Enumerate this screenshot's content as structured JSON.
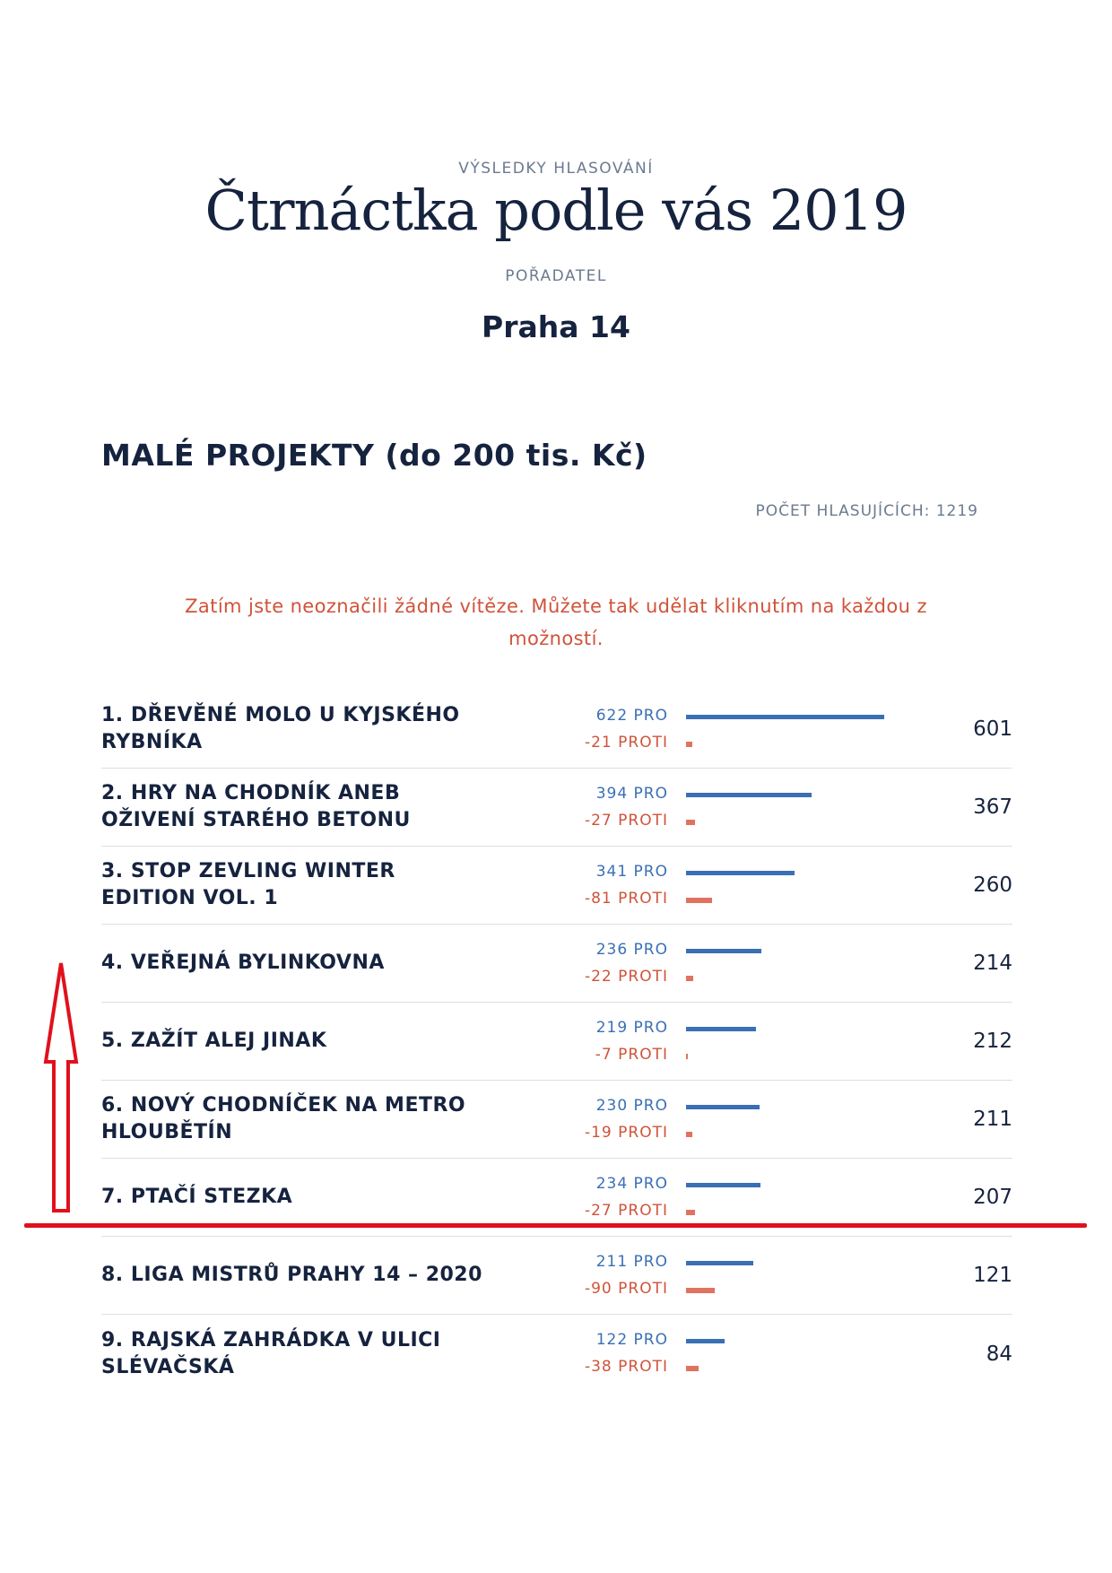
{
  "header": {
    "kicker": "VÝSLEDKY HLASOVÁNÍ",
    "title": "Čtrnáctka podle vás 2019",
    "organizer_label": "POŘADATEL",
    "organizer": "Praha 14"
  },
  "section": {
    "title": "MALÉ PROJEKTY (do 200 tis. Kč)",
    "voters": "POČET HLASUJÍCÍCH: 1219",
    "notice": "Zatím jste neoznačili žádné vítěze. Můžete tak udělat kliknutím na každou z možností."
  },
  "colors": {
    "pro": "#3a6fb5",
    "contra": "#e07360",
    "accent_red": "#e0111c",
    "title": "#16233f"
  },
  "results": [
    {
      "name": "1. DŘEVĚNÉ MOLO U KYJSKÉHO RYBNÍKA",
      "pro": 622,
      "pro_label": "622 PRO",
      "contra": 21,
      "contra_label": "-21 PROTI",
      "total": "601"
    },
    {
      "name": "2. HRY NA CHODNÍK ANEB OŽIVENÍ STARÉHO BETONU",
      "pro": 394,
      "pro_label": "394 PRO",
      "contra": 27,
      "contra_label": "-27 PROTI",
      "total": "367"
    },
    {
      "name": "3. STOP ZEVLING WINTER EDITION VOL. 1",
      "pro": 341,
      "pro_label": "341 PRO",
      "contra": 81,
      "contra_label": "-81 PROTI",
      "total": "260"
    },
    {
      "name": "4. VEŘEJNÁ BYLINKOVNA",
      "pro": 236,
      "pro_label": "236 PRO",
      "contra": 22,
      "contra_label": "-22 PROTI",
      "total": "214"
    },
    {
      "name": "5. ZAŽÍT ALEJ JINAK",
      "pro": 219,
      "pro_label": "219 PRO",
      "contra": 7,
      "contra_label": "-7 PROTI",
      "total": "212"
    },
    {
      "name": "6. NOVÝ CHODNÍČEK NA METRO HLOUBĚTÍN",
      "pro": 230,
      "pro_label": "230 PRO",
      "contra": 19,
      "contra_label": "-19 PROTI",
      "total": "211"
    },
    {
      "name": "7. PTAČÍ STEZKA",
      "pro": 234,
      "pro_label": "234 PRO",
      "contra": 27,
      "contra_label": "-27 PROTI",
      "total": "207"
    },
    {
      "name": "8. LIGA MISTRŮ PRAHY 14 – 2020",
      "pro": 211,
      "pro_label": "211 PRO",
      "contra": 90,
      "contra_label": "-90 PROTI",
      "total": "121"
    },
    {
      "name": "9. RAJSKÁ ZAHRÁDKA V ULICI SLÉVAČSKÁ",
      "pro": 122,
      "pro_label": "122 PRO",
      "contra": 38,
      "contra_label": "-38 PROTI",
      "total": "84"
    }
  ],
  "annotations": {
    "arrow_icon": "up-arrow-outline-icon",
    "cutoff_after_row": 7
  }
}
